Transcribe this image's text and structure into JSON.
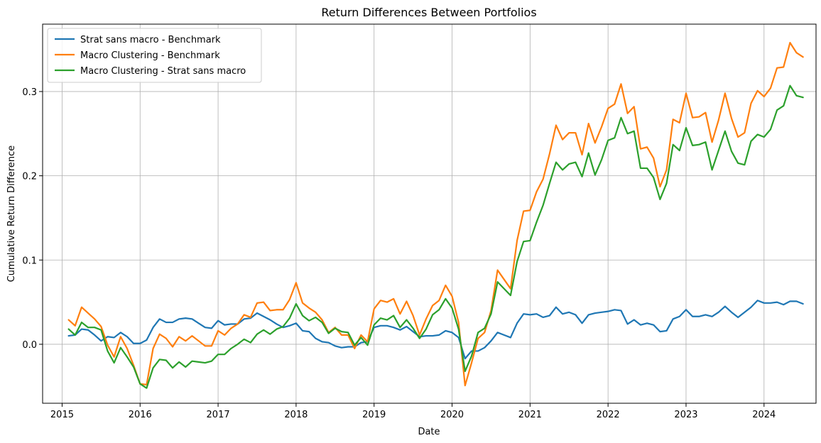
{
  "chart_data": {
    "type": "line",
    "title": "Return Differences Between Portfolios",
    "xlabel": "Date",
    "ylabel": "Cumulative Return Difference",
    "xlim": [
      "2014-10",
      "2024-09"
    ],
    "ylim": [
      -0.07,
      0.38
    ],
    "x_ticks": [
      "2015",
      "2016",
      "2017",
      "2018",
      "2019",
      "2020",
      "2021",
      "2022",
      "2023",
      "2024"
    ],
    "y_ticks": [
      "0.0",
      "0.1",
      "0.2",
      "0.3"
    ],
    "y_tick_values": [
      0.0,
      0.1,
      0.2,
      0.3
    ],
    "grid": true,
    "legend_position": "top-left",
    "x": [
      "2015-02",
      "2015-03",
      "2015-04",
      "2015-05",
      "2015-06",
      "2015-07",
      "2015-08",
      "2015-09",
      "2015-10",
      "2015-11",
      "2015-12",
      "2016-01",
      "2016-02",
      "2016-03",
      "2016-04",
      "2016-05",
      "2016-06",
      "2016-07",
      "2016-08",
      "2016-09",
      "2016-10",
      "2016-11",
      "2016-12",
      "2017-01",
      "2017-02",
      "2017-03",
      "2017-04",
      "2017-05",
      "2017-06",
      "2017-07",
      "2017-08",
      "2017-09",
      "2017-10",
      "2017-11",
      "2017-12",
      "2018-01",
      "2018-02",
      "2018-03",
      "2018-04",
      "2018-05",
      "2018-06",
      "2018-07",
      "2018-08",
      "2018-09",
      "2018-10",
      "2018-11",
      "2018-12",
      "2019-01",
      "2019-02",
      "2019-03",
      "2019-04",
      "2019-05",
      "2019-06",
      "2019-07",
      "2019-08",
      "2019-09",
      "2019-10",
      "2019-11",
      "2019-12",
      "2020-01",
      "2020-02",
      "2020-03",
      "2020-04",
      "2020-05",
      "2020-06",
      "2020-07",
      "2020-08",
      "2020-09",
      "2020-10",
      "2020-11",
      "2020-12",
      "2021-01",
      "2021-02",
      "2021-03",
      "2021-04",
      "2021-05",
      "2021-06",
      "2021-07",
      "2021-08",
      "2021-09",
      "2021-10",
      "2021-11",
      "2021-12",
      "2022-01",
      "2022-02",
      "2022-03",
      "2022-04",
      "2022-05",
      "2022-06",
      "2022-07",
      "2022-08",
      "2022-09",
      "2022-10",
      "2022-11",
      "2022-12",
      "2023-01",
      "2023-02",
      "2023-03",
      "2023-04",
      "2023-05",
      "2023-06",
      "2023-07",
      "2023-08",
      "2023-09",
      "2023-10",
      "2023-11",
      "2023-12",
      "2024-01",
      "2024-02",
      "2024-03",
      "2024-04",
      "2024-05",
      "2024-06",
      "2024-07"
    ],
    "series": [
      {
        "name": "Strat sans macro - Benchmark",
        "color": "#1f77b4",
        "values": [
          0.01,
          0.011,
          0.018,
          0.017,
          0.011,
          0.004,
          0.009,
          0.008,
          0.014,
          0.009,
          0.001,
          0.001,
          0.005,
          0.02,
          0.03,
          0.026,
          0.026,
          0.03,
          0.031,
          0.03,
          0.025,
          0.02,
          0.019,
          0.028,
          0.023,
          0.024,
          0.024,
          0.03,
          0.031,
          0.037,
          0.033,
          0.029,
          0.024,
          0.02,
          0.022,
          0.025,
          0.016,
          0.015,
          0.007,
          0.003,
          0.002,
          -0.002,
          -0.004,
          -0.003,
          -0.003,
          0.002,
          0.003,
          0.02,
          0.022,
          0.022,
          0.02,
          0.017,
          0.021,
          0.015,
          0.009,
          0.01,
          0.01,
          0.011,
          0.016,
          0.014,
          0.008,
          -0.017,
          -0.008,
          -0.008,
          -0.004,
          0.004,
          0.014,
          0.011,
          0.008,
          0.025,
          0.036,
          0.035,
          0.036,
          0.032,
          0.034,
          0.044,
          0.036,
          0.038,
          0.035,
          0.025,
          0.035,
          0.037,
          0.038,
          0.039,
          0.041,
          0.04,
          0.024,
          0.029,
          0.023,
          0.025,
          0.023,
          0.015,
          0.016,
          0.03,
          0.033,
          0.041,
          0.033,
          0.033,
          0.035,
          0.033,
          0.038,
          0.045,
          0.038,
          0.032,
          0.038,
          0.044,
          0.052,
          0.049,
          0.049,
          0.05,
          0.047,
          0.051,
          0.051,
          0.048
        ]
      },
      {
        "name": "Macro Clustering - Benchmark",
        "color": "#ff7f0e",
        "values": [
          0.029,
          0.022,
          0.044,
          0.037,
          0.03,
          0.021,
          -0.001,
          -0.015,
          0.009,
          -0.005,
          -0.025,
          -0.047,
          -0.048,
          -0.005,
          0.012,
          0.007,
          -0.003,
          0.009,
          0.004,
          0.01,
          0.004,
          -0.002,
          -0.002,
          0.016,
          0.011,
          0.019,
          0.024,
          0.035,
          0.032,
          0.049,
          0.05,
          0.04,
          0.041,
          0.041,
          0.053,
          0.073,
          0.049,
          0.043,
          0.038,
          0.029,
          0.014,
          0.02,
          0.011,
          0.011,
          -0.005,
          0.011,
          0.003,
          0.042,
          0.052,
          0.05,
          0.054,
          0.036,
          0.051,
          0.034,
          0.011,
          0.03,
          0.046,
          0.052,
          0.07,
          0.057,
          0.026,
          -0.049,
          -0.022,
          0.007,
          0.014,
          0.04,
          0.088,
          0.077,
          0.066,
          0.123,
          0.158,
          0.159,
          0.181,
          0.196,
          0.226,
          0.26,
          0.243,
          0.251,
          0.251,
          0.225,
          0.262,
          0.239,
          0.258,
          0.28,
          0.285,
          0.309,
          0.274,
          0.282,
          0.232,
          0.234,
          0.221,
          0.187,
          0.207,
          0.267,
          0.263,
          0.298,
          0.269,
          0.27,
          0.275,
          0.24,
          0.266,
          0.298,
          0.268,
          0.246,
          0.251,
          0.286,
          0.301,
          0.294,
          0.304,
          0.328,
          0.329,
          0.358,
          0.346,
          0.341
        ]
      },
      {
        "name": "Macro Clustering - Strat sans macro",
        "color": "#2ca02c",
        "values": [
          0.018,
          0.011,
          0.026,
          0.02,
          0.02,
          0.017,
          -0.008,
          -0.022,
          -0.004,
          -0.015,
          -0.027,
          -0.047,
          -0.052,
          -0.028,
          -0.018,
          -0.019,
          -0.028,
          -0.021,
          -0.027,
          -0.02,
          -0.021,
          -0.022,
          -0.02,
          -0.012,
          -0.012,
          -0.005,
          0.0,
          0.006,
          0.002,
          0.012,
          0.017,
          0.012,
          0.018,
          0.021,
          0.031,
          0.048,
          0.034,
          0.028,
          0.032,
          0.026,
          0.013,
          0.019,
          0.015,
          0.014,
          -0.001,
          0.008,
          -0.001,
          0.023,
          0.031,
          0.029,
          0.034,
          0.02,
          0.029,
          0.019,
          0.007,
          0.018,
          0.035,
          0.041,
          0.054,
          0.043,
          0.018,
          -0.032,
          -0.014,
          0.014,
          0.019,
          0.036,
          0.074,
          0.066,
          0.058,
          0.098,
          0.122,
          0.123,
          0.145,
          0.165,
          0.191,
          0.216,
          0.207,
          0.214,
          0.216,
          0.199,
          0.227,
          0.201,
          0.219,
          0.242,
          0.245,
          0.269,
          0.25,
          0.253,
          0.209,
          0.209,
          0.198,
          0.172,
          0.191,
          0.237,
          0.23,
          0.257,
          0.236,
          0.237,
          0.24,
          0.207,
          0.23,
          0.253,
          0.229,
          0.215,
          0.213,
          0.241,
          0.249,
          0.246,
          0.255,
          0.278,
          0.283,
          0.307,
          0.295,
          0.293
        ]
      }
    ]
  }
}
